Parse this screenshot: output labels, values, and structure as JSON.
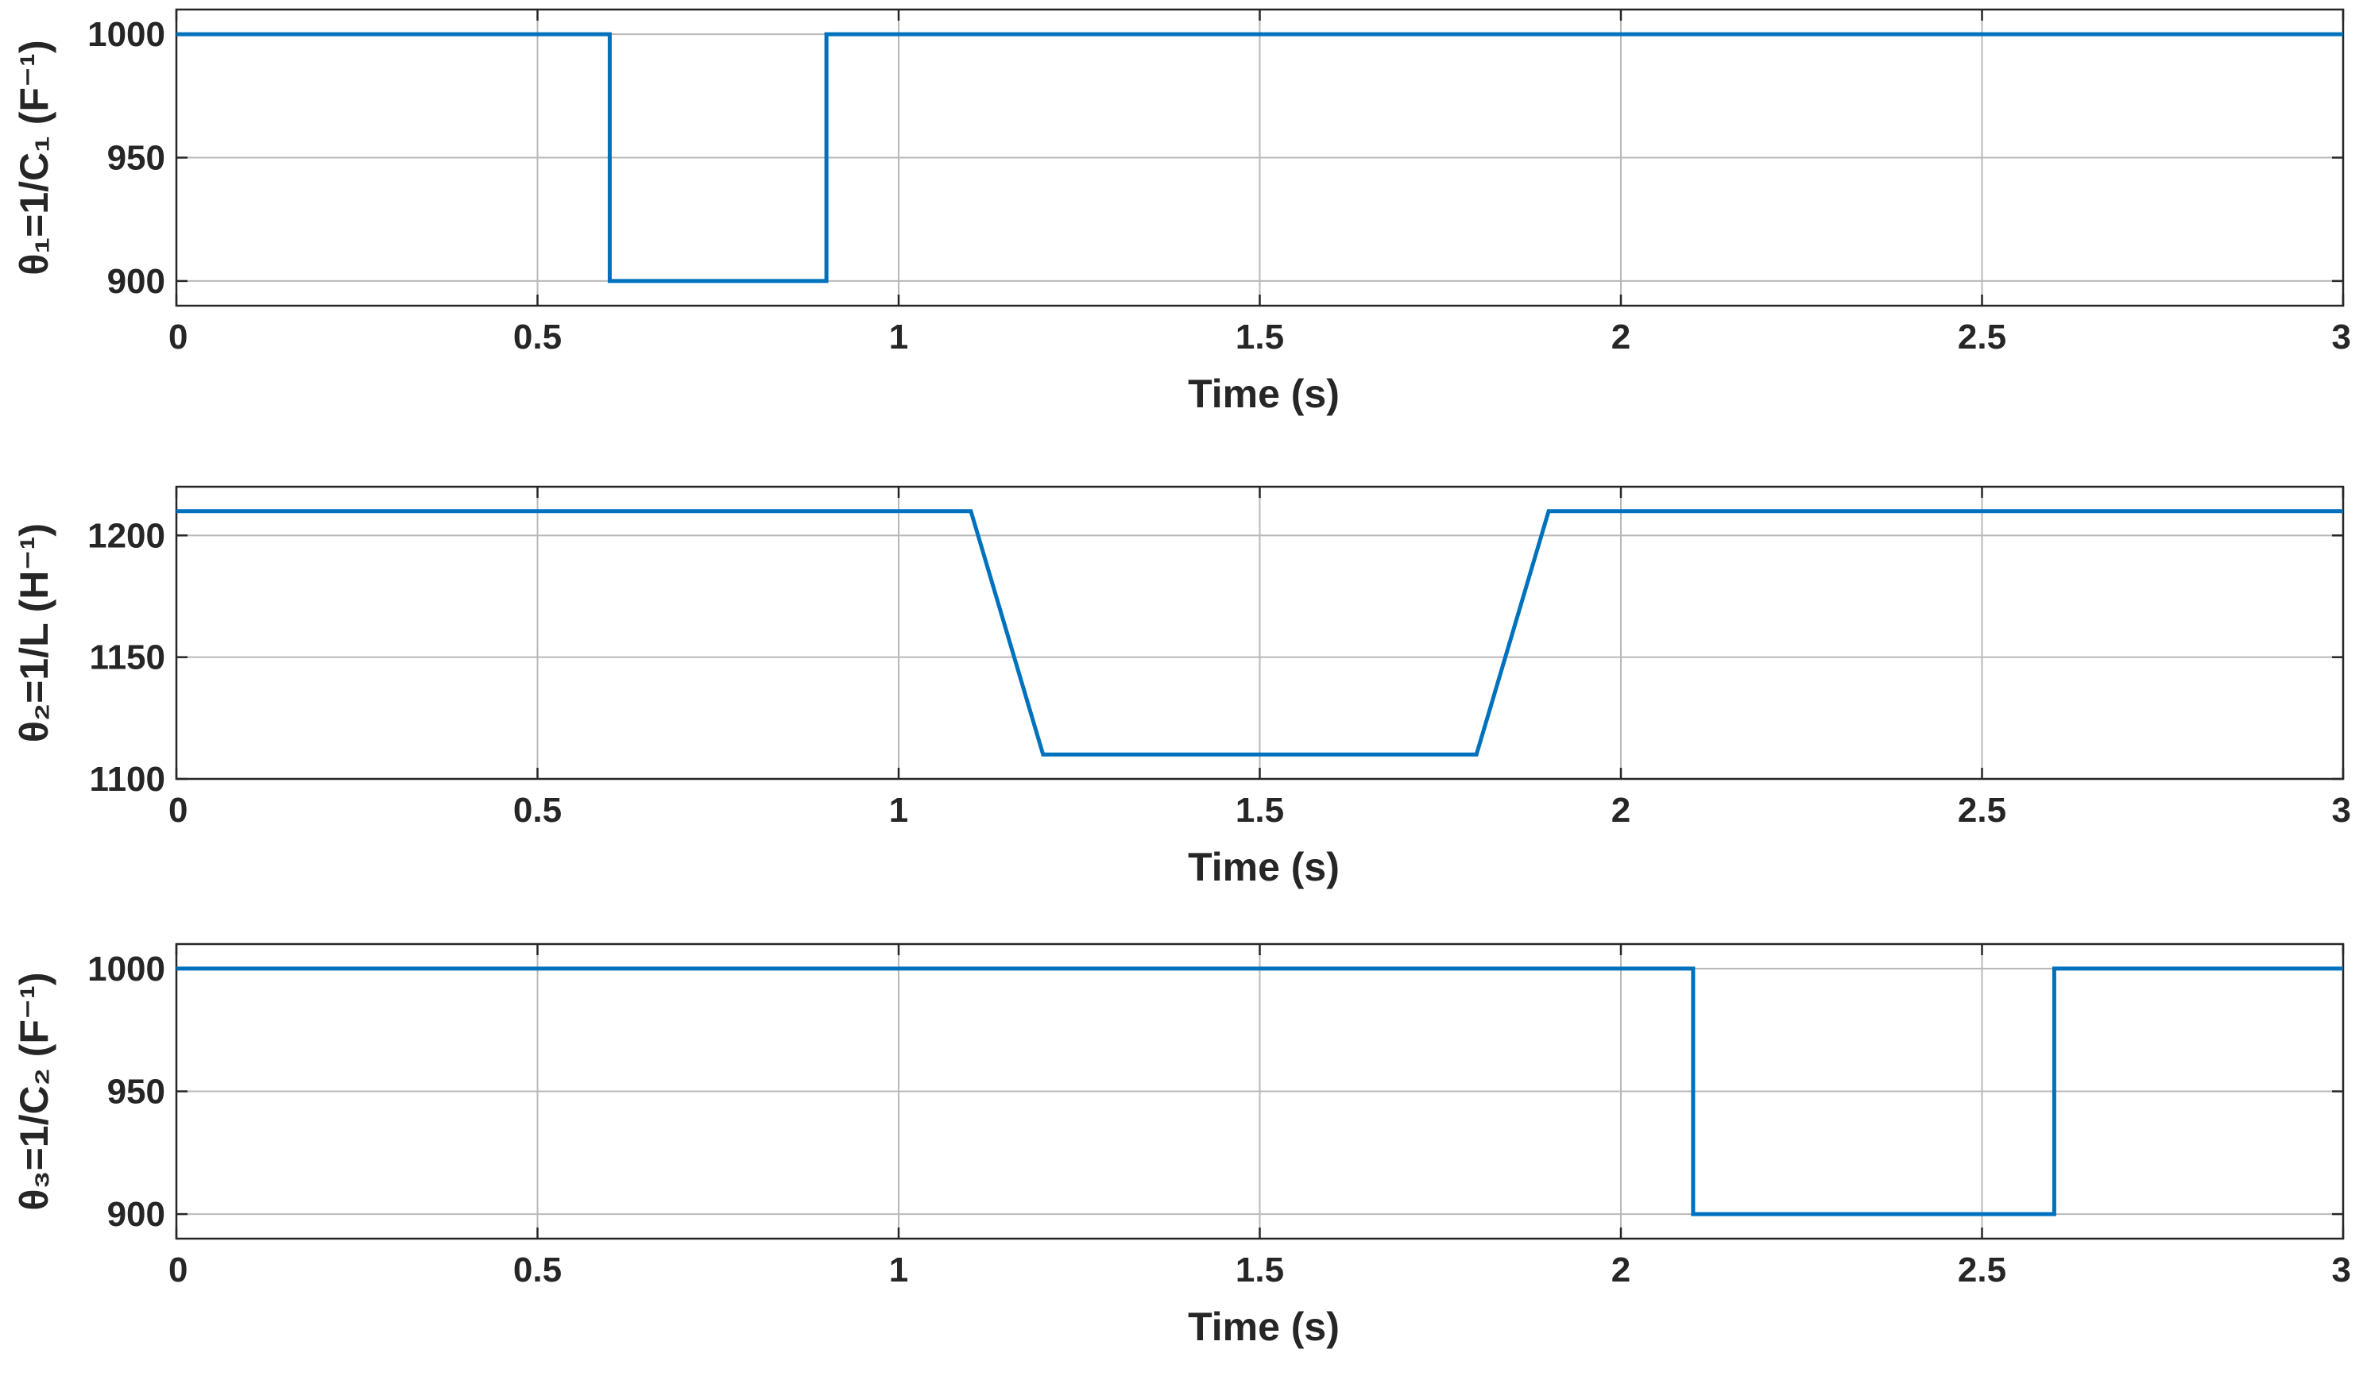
{
  "chart_data": [
    {
      "type": "line",
      "title": "",
      "xlabel": "Time (s)",
      "ylabel": "θ₁=1/C₁ (F⁻¹)",
      "xlim": [
        0,
        3
      ],
      "ylim": [
        890,
        1010
      ],
      "xticks": [
        0,
        0.5,
        1,
        1.5,
        2,
        2.5,
        3
      ],
      "xtick_labels": [
        "0",
        "0.5",
        "1",
        "1.5",
        "2",
        "2.5",
        "3"
      ],
      "yticks": [
        900,
        950,
        1000
      ],
      "ytick_labels": [
        "900",
        "950",
        "1000"
      ],
      "grid": true,
      "color": "#0072BD",
      "series": [
        {
          "x": [
            0,
            0.6,
            0.6,
            0.9,
            0.9,
            3
          ],
          "y": [
            1000,
            1000,
            900,
            900,
            1000,
            1000
          ]
        }
      ]
    },
    {
      "type": "line",
      "title": "",
      "xlabel": "Time (s)",
      "ylabel": "θ₂=1/L (H⁻¹)",
      "xlim": [
        0,
        3
      ],
      "ylim": [
        1100,
        1220
      ],
      "xticks": [
        0,
        0.5,
        1,
        1.5,
        2,
        2.5,
        3
      ],
      "xtick_labels": [
        "0",
        "0.5",
        "1",
        "1.5",
        "2",
        "2.5",
        "3"
      ],
      "yticks": [
        1100,
        1150,
        1200
      ],
      "ytick_labels": [
        "1100",
        "1150",
        "1200"
      ],
      "grid": true,
      "color": "#0072BD",
      "series": [
        {
          "x": [
            0,
            1.1,
            1.2,
            1.8,
            1.9,
            3
          ],
          "y": [
            1210,
            1210,
            1110,
            1110,
            1210,
            1210
          ]
        }
      ]
    },
    {
      "type": "line",
      "title": "",
      "xlabel": "Time (s)",
      "ylabel": "θ₃=1/C₂ (F⁻¹)",
      "xlim": [
        0,
        3
      ],
      "ylim": [
        890,
        1010
      ],
      "xticks": [
        0,
        0.5,
        1,
        1.5,
        2,
        2.5,
        3
      ],
      "xtick_labels": [
        "0",
        "0.5",
        "1",
        "1.5",
        "2",
        "2.5",
        "3"
      ],
      "yticks": [
        900,
        950,
        1000
      ],
      "ytick_labels": [
        "900",
        "950",
        "1000"
      ],
      "grid": true,
      "color": "#0072BD",
      "series": [
        {
          "x": [
            0,
            2.1,
            2.1,
            2.6,
            2.6,
            3
          ],
          "y": [
            1000,
            1000,
            900,
            900,
            1000,
            1000
          ]
        }
      ]
    }
  ]
}
